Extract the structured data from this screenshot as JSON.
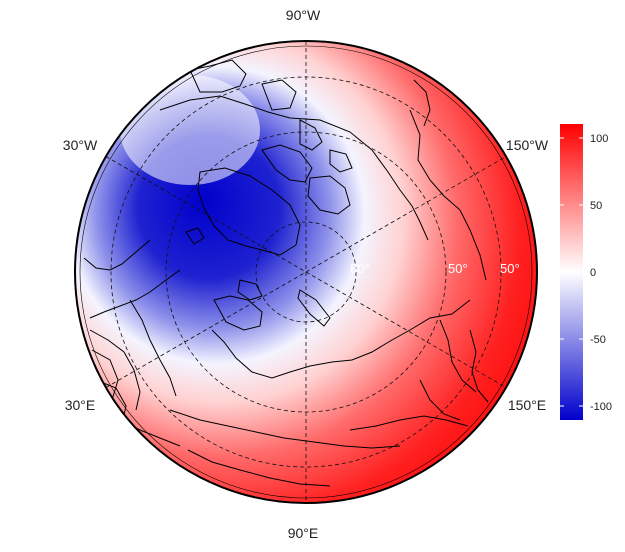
{
  "map": {
    "longitude_labels": {
      "top": "90°W",
      "upper_left": "30°W",
      "upper_right": "150°W",
      "lower_left": "30°E",
      "lower_right": "150°E",
      "bottom": "90°E"
    },
    "latitude_labels": [
      "80°",
      "50°",
      "50°"
    ]
  },
  "colorbar": {
    "ticks": [
      "100",
      "50",
      "0",
      "-50",
      "-100"
    ],
    "range": [
      -110,
      110
    ],
    "colors": {
      "high": "#ff0000",
      "mid": "#ffffff",
      "low": "#0000cc"
    }
  }
}
